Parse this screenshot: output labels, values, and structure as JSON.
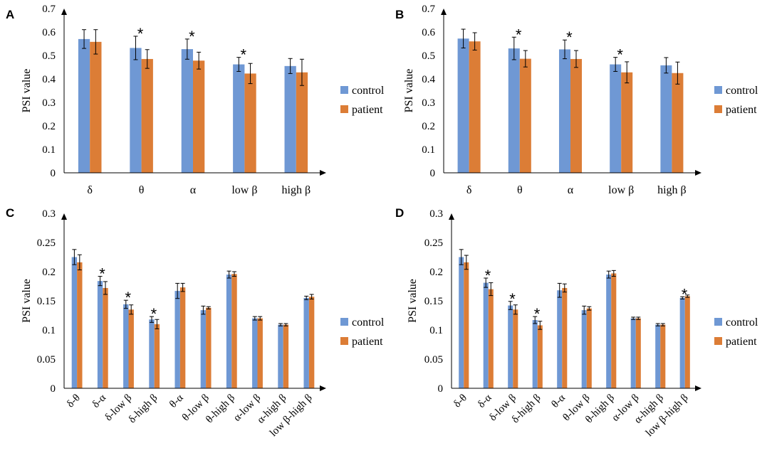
{
  "chart_data": [
    {
      "panel": "A",
      "type": "bar",
      "ylabel": "PSI value",
      "ylim": [
        0,
        0.7
      ],
      "yticks": [
        "0",
        "0.1",
        "0.2",
        "0.3",
        "0.4",
        "0.5",
        "0.6",
        "0.7"
      ],
      "categories": [
        "δ",
        "θ",
        "α",
        "low  β",
        "high β"
      ],
      "series": [
        {
          "name": "control",
          "color": "#6f98d4",
          "values": [
            0.57,
            0.532,
            0.527,
            0.462,
            0.455
          ],
          "errors": [
            0.04,
            0.05,
            0.043,
            0.03,
            0.032
          ]
        },
        {
          "name": "patient",
          "color": "#dc7d36",
          "values": [
            0.558,
            0.485,
            0.478,
            0.423,
            0.428
          ],
          "errors": [
            0.052,
            0.04,
            0.036,
            0.043,
            0.056
          ]
        }
      ],
      "significant": [
        false,
        true,
        true,
        true,
        false
      ],
      "star_label": "*"
    },
    {
      "panel": "B",
      "type": "bar",
      "ylabel": "PSI value",
      "ylim": [
        0,
        0.7
      ],
      "yticks": [
        "0",
        "0.1",
        "0.2",
        "0.3",
        "0.4",
        "0.5",
        "0.6",
        "0.7"
      ],
      "categories": [
        "δ",
        "θ",
        "α",
        "low  β",
        "high β"
      ],
      "series": [
        {
          "name": "control",
          "color": "#6f98d4",
          "values": [
            0.572,
            0.53,
            0.526,
            0.462,
            0.458
          ],
          "errors": [
            0.04,
            0.048,
            0.04,
            0.03,
            0.033
          ]
        },
        {
          "name": "patient",
          "color": "#dc7d36",
          "values": [
            0.56,
            0.486,
            0.485,
            0.428,
            0.425
          ],
          "errors": [
            0.037,
            0.035,
            0.036,
            0.045,
            0.047
          ]
        }
      ],
      "significant": [
        false,
        true,
        true,
        true,
        false
      ],
      "star_label": "*"
    },
    {
      "panel": "C",
      "type": "bar",
      "ylabel": "PSI value",
      "ylim": [
        0,
        0.3
      ],
      "yticks": [
        "0",
        "0.05",
        "0.1",
        "0.15",
        "0.2",
        "0.25",
        "0.3"
      ],
      "categories": [
        "δ-θ",
        "δ-α",
        "δ-low β",
        "δ-high β",
        "θ-α",
        "θ-low β",
        "θ-high β",
        "α-low β",
        "α-high β",
        "low β-high β"
      ],
      "series": [
        {
          "name": "control",
          "color": "#6f98d4",
          "values": [
            0.225,
            0.184,
            0.144,
            0.118,
            0.167,
            0.134,
            0.195,
            0.12,
            0.109,
            0.155
          ],
          "errors": [
            0.013,
            0.008,
            0.007,
            0.005,
            0.013,
            0.007,
            0.006,
            0.003,
            0.002,
            0.003
          ]
        },
        {
          "name": "patient",
          "color": "#dc7d36",
          "values": [
            0.216,
            0.172,
            0.135,
            0.11,
            0.173,
            0.138,
            0.196,
            0.12,
            0.109,
            0.157
          ],
          "errors": [
            0.013,
            0.011,
            0.008,
            0.008,
            0.007,
            0.002,
            0.004,
            0.003,
            0.002,
            0.004
          ]
        }
      ],
      "significant": [
        false,
        true,
        true,
        true,
        false,
        false,
        false,
        false,
        false,
        false
      ],
      "star_label": "*"
    },
    {
      "panel": "D",
      "type": "bar",
      "ylabel": "PSI value",
      "ylim": [
        0,
        0.3
      ],
      "yticks": [
        "0",
        "0.05",
        "0.1",
        "0.15",
        "0.2",
        "0.25",
        "0.3"
      ],
      "categories": [
        "δ-θ",
        "δ-α",
        "δ-low β",
        "δ-high β",
        "θ-α",
        "θ-low β",
        "θ-high β",
        "α-low β",
        "α-high β",
        "low β-high β"
      ],
      "series": [
        {
          "name": "control",
          "color": "#6f98d4",
          "values": [
            0.225,
            0.181,
            0.142,
            0.117,
            0.168,
            0.134,
            0.195,
            0.12,
            0.109,
            0.155
          ],
          "errors": [
            0.013,
            0.008,
            0.007,
            0.006,
            0.012,
            0.007,
            0.006,
            0.002,
            0.002,
            0.002
          ]
        },
        {
          "name": "patient",
          "color": "#dc7d36",
          "values": [
            0.216,
            0.17,
            0.135,
            0.108,
            0.172,
            0.137,
            0.197,
            0.12,
            0.109,
            0.158
          ],
          "errors": [
            0.012,
            0.011,
            0.008,
            0.007,
            0.007,
            0.003,
            0.005,
            0.002,
            0.002,
            0.002
          ]
        }
      ],
      "significant": [
        false,
        true,
        true,
        true,
        false,
        false,
        false,
        false,
        false,
        true
      ],
      "star_label": "*"
    }
  ]
}
